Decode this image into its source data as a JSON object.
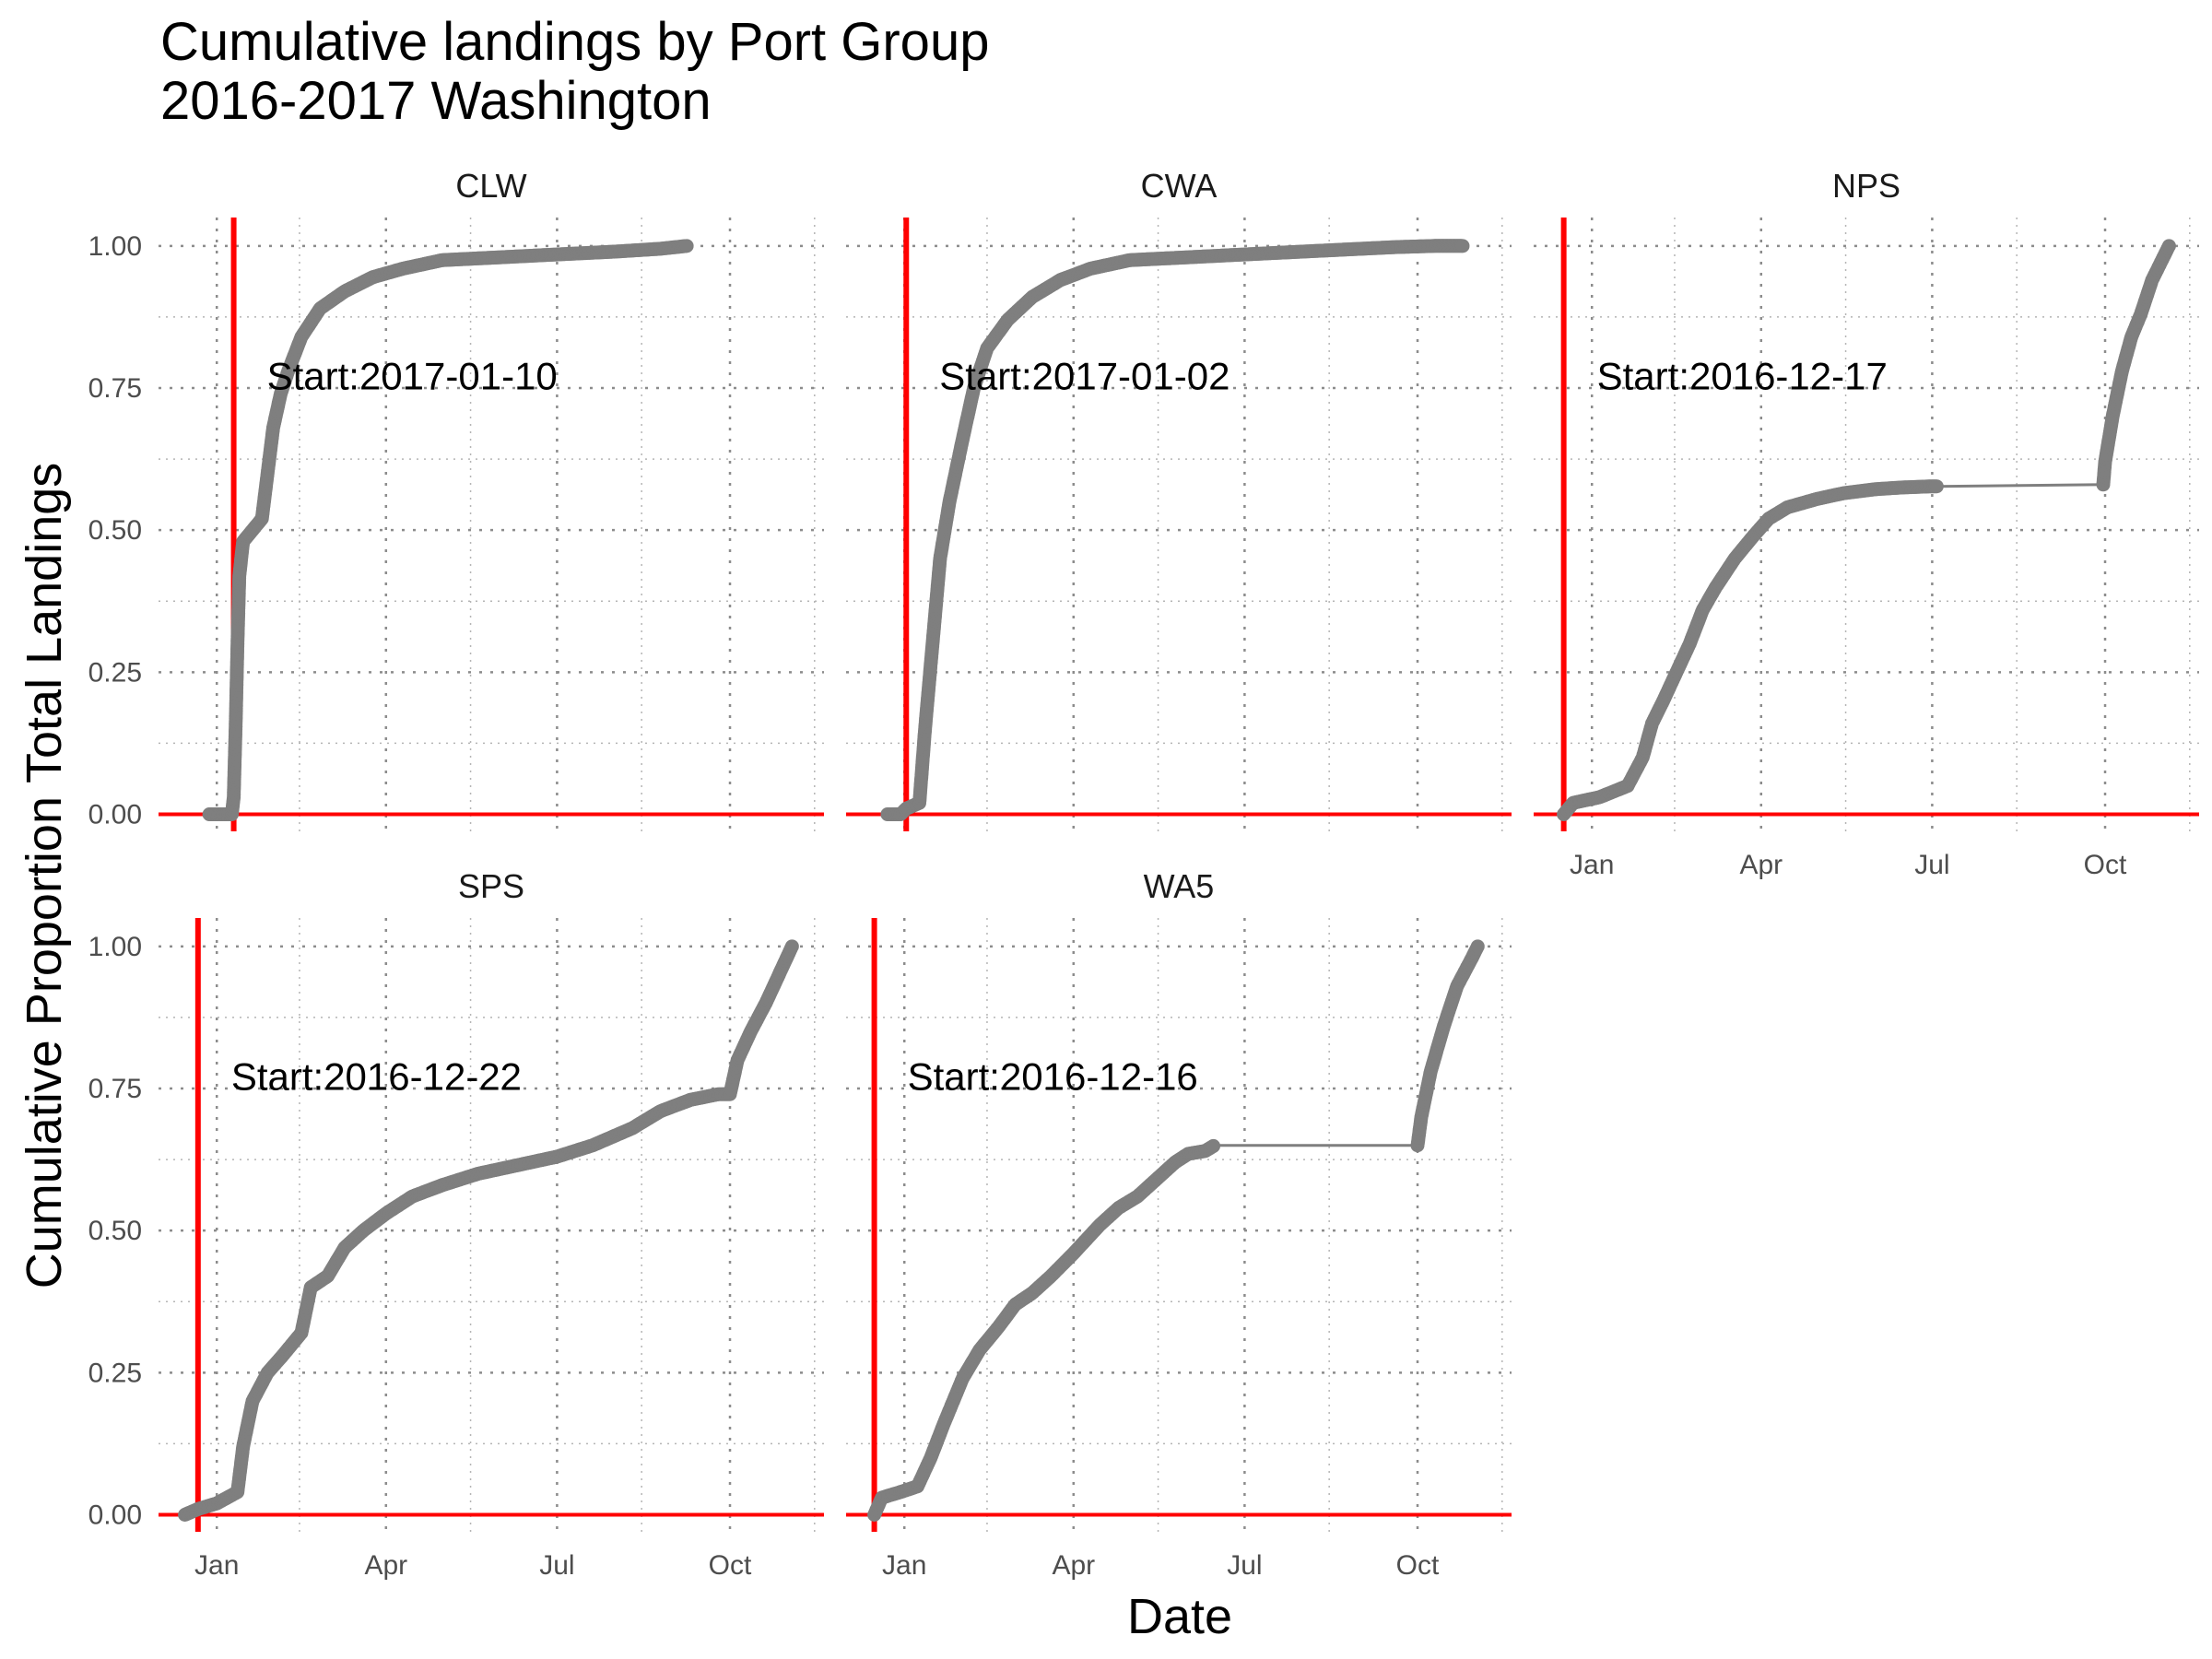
{
  "chart_data": {
    "type": "line",
    "title_line1": "Cumulative landings by Port Group",
    "title_line2": "2016-2017 Washington",
    "xlabel": "Date",
    "ylabel": "Cumulative Proportion Total Landings",
    "xlim": [
      "2016-12-01",
      "2017-11-20"
    ],
    "ylim": [
      -0.03,
      1.05
    ],
    "x_ticks": [
      {
        "label": "Jan",
        "date": "2017-01-01"
      },
      {
        "label": "Apr",
        "date": "2017-04-01"
      },
      {
        "label": "Jul",
        "date": "2017-07-01"
      },
      {
        "label": "Oct",
        "date": "2017-10-01"
      }
    ],
    "y_ticks": [
      "0.00",
      "0.25",
      "0.50",
      "0.75",
      "1.00"
    ],
    "y_tick_values": [
      0,
      0.25,
      0.5,
      0.75,
      1.0
    ],
    "grid": "dotted",
    "colors": {
      "points": "#7f7f7f",
      "reference": "#ff0000",
      "grid": "#8c8c8c"
    },
    "panels": [
      {
        "name": "CLW",
        "start_label": "Start:2017-01-10",
        "start_date": "2017-01-10",
        "points": [
          [
            "2016-12-28",
            0.0
          ],
          [
            "2017-01-09",
            0.0
          ],
          [
            "2017-01-10",
            0.03
          ],
          [
            "2017-01-11",
            0.15
          ],
          [
            "2017-01-12",
            0.3
          ],
          [
            "2017-01-13",
            0.42
          ],
          [
            "2017-01-15",
            0.48
          ],
          [
            "2017-01-20",
            0.5
          ],
          [
            "2017-01-25",
            0.52
          ],
          [
            "2017-01-28",
            0.6
          ],
          [
            "2017-01-31",
            0.68
          ],
          [
            "2017-02-04",
            0.74
          ],
          [
            "2017-02-08",
            0.78
          ],
          [
            "2017-02-15",
            0.84
          ],
          [
            "2017-02-25",
            0.89
          ],
          [
            "2017-03-10",
            0.92
          ],
          [
            "2017-03-25",
            0.945
          ],
          [
            "2017-04-10",
            0.96
          ],
          [
            "2017-05-01",
            0.975
          ],
          [
            "2017-06-01",
            0.98
          ],
          [
            "2017-07-01",
            0.985
          ],
          [
            "2017-08-01",
            0.99
          ],
          [
            "2017-08-25",
            0.995
          ],
          [
            "2017-09-08",
            1.0
          ]
        ]
      },
      {
        "name": "CWA",
        "start_label": "Start:2017-01-02",
        "start_date": "2017-01-02",
        "points": [
          [
            "2016-12-23",
            0.0
          ],
          [
            "2016-12-30",
            0.0
          ],
          [
            "2017-01-02",
            0.01
          ],
          [
            "2017-01-09",
            0.02
          ],
          [
            "2017-01-12",
            0.15
          ],
          [
            "2017-01-16",
            0.3
          ],
          [
            "2017-01-20",
            0.45
          ],
          [
            "2017-01-25",
            0.55
          ],
          [
            "2017-02-01",
            0.66
          ],
          [
            "2017-02-07",
            0.75
          ],
          [
            "2017-02-14",
            0.82
          ],
          [
            "2017-02-25",
            0.87
          ],
          [
            "2017-03-10",
            0.91
          ],
          [
            "2017-03-25",
            0.94
          ],
          [
            "2017-04-10",
            0.96
          ],
          [
            "2017-05-01",
            0.975
          ],
          [
            "2017-06-01",
            0.98
          ],
          [
            "2017-07-01",
            0.985
          ],
          [
            "2017-08-01",
            0.99
          ],
          [
            "2017-09-01",
            0.995
          ],
          [
            "2017-09-20",
            0.998
          ],
          [
            "2017-10-10",
            1.0
          ],
          [
            "2017-10-25",
            1.0
          ]
        ]
      },
      {
        "name": "NPS",
        "start_label": "Start:2016-12-17",
        "start_date": "2016-12-17",
        "points": [
          [
            "2016-12-17",
            0.0
          ],
          [
            "2016-12-22",
            0.02
          ],
          [
            "2017-01-05",
            0.03
          ],
          [
            "2017-01-20",
            0.05
          ],
          [
            "2017-01-28",
            0.1
          ],
          [
            "2017-02-02",
            0.16
          ],
          [
            "2017-02-08",
            0.2
          ],
          [
            "2017-02-15",
            0.25
          ],
          [
            "2017-02-22",
            0.3
          ],
          [
            "2017-03-01",
            0.36
          ],
          [
            "2017-03-08",
            0.4
          ],
          [
            "2017-03-18",
            0.45
          ],
          [
            "2017-03-28",
            0.49
          ],
          [
            "2017-04-05",
            0.52
          ],
          [
            "2017-04-15",
            0.54
          ],
          [
            "2017-05-01",
            0.555
          ],
          [
            "2017-05-15",
            0.565
          ],
          [
            "2017-06-01",
            0.572
          ],
          [
            "2017-06-15",
            0.575
          ],
          [
            "2017-07-01",
            0.577
          ],
          [
            "2017-07-04",
            0.577
          ],
          [
            "2017-09-30",
            0.58
          ],
          [
            "2017-10-01",
            0.62
          ],
          [
            "2017-10-05",
            0.7
          ],
          [
            "2017-10-10",
            0.78
          ],
          [
            "2017-10-15",
            0.84
          ],
          [
            "2017-10-20",
            0.88
          ],
          [
            "2017-10-26",
            0.94
          ],
          [
            "2017-11-01",
            0.98
          ],
          [
            "2017-11-04",
            1.0
          ]
        ]
      },
      {
        "name": "SPS",
        "start_label": "Start:2016-12-22",
        "start_date": "2016-12-22",
        "points": [
          [
            "2016-12-15",
            0.0
          ],
          [
            "2016-12-22",
            0.01
          ],
          [
            "2017-01-01",
            0.02
          ],
          [
            "2017-01-12",
            0.04
          ],
          [
            "2017-01-15",
            0.12
          ],
          [
            "2017-01-20",
            0.2
          ],
          [
            "2017-01-28",
            0.25
          ],
          [
            "2017-02-05",
            0.28
          ],
          [
            "2017-02-15",
            0.32
          ],
          [
            "2017-02-20",
            0.4
          ],
          [
            "2017-03-01",
            0.42
          ],
          [
            "2017-03-10",
            0.47
          ],
          [
            "2017-03-20",
            0.5
          ],
          [
            "2017-04-01",
            0.53
          ],
          [
            "2017-04-15",
            0.56
          ],
          [
            "2017-05-01",
            0.58
          ],
          [
            "2017-05-20",
            0.6
          ],
          [
            "2017-06-10",
            0.615
          ],
          [
            "2017-07-01",
            0.63
          ],
          [
            "2017-07-20",
            0.65
          ],
          [
            "2017-08-10",
            0.68
          ],
          [
            "2017-08-25",
            0.71
          ],
          [
            "2017-09-10",
            0.73
          ],
          [
            "2017-09-25",
            0.74
          ],
          [
            "2017-10-01",
            0.74
          ],
          [
            "2017-10-05",
            0.8
          ],
          [
            "2017-10-12",
            0.85
          ],
          [
            "2017-10-20",
            0.9
          ],
          [
            "2017-10-27",
            0.95
          ],
          [
            "2017-11-03",
            1.0
          ]
        ]
      },
      {
        "name": "WA5",
        "start_label": "Start:2016-12-16",
        "start_date": "2016-12-16",
        "points": [
          [
            "2016-12-16",
            0.0
          ],
          [
            "2016-12-20",
            0.03
          ],
          [
            "2016-12-30",
            0.04
          ],
          [
            "2017-01-08",
            0.05
          ],
          [
            "2017-01-15",
            0.1
          ],
          [
            "2017-01-22",
            0.16
          ],
          [
            "2017-02-01",
            0.24
          ],
          [
            "2017-02-10",
            0.29
          ],
          [
            "2017-02-20",
            0.33
          ],
          [
            "2017-03-01",
            0.37
          ],
          [
            "2017-03-10",
            0.39
          ],
          [
            "2017-03-20",
            0.42
          ],
          [
            "2017-04-01",
            0.46
          ],
          [
            "2017-04-15",
            0.51
          ],
          [
            "2017-04-25",
            0.54
          ],
          [
            "2017-05-05",
            0.56
          ],
          [
            "2017-05-15",
            0.59
          ],
          [
            "2017-05-25",
            0.62
          ],
          [
            "2017-06-01",
            0.635
          ],
          [
            "2017-06-10",
            0.64
          ],
          [
            "2017-06-15",
            0.65
          ],
          [
            "2017-10-01",
            0.65
          ],
          [
            "2017-10-03",
            0.7
          ],
          [
            "2017-10-08",
            0.78
          ],
          [
            "2017-10-15",
            0.86
          ],
          [
            "2017-10-22",
            0.93
          ],
          [
            "2017-10-30",
            0.98
          ],
          [
            "2017-11-02",
            1.0
          ]
        ]
      }
    ]
  }
}
